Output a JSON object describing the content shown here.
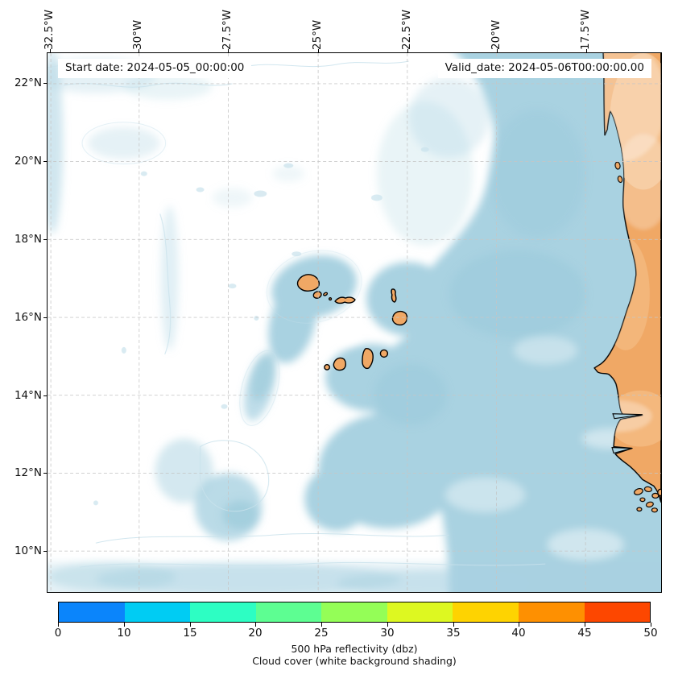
{
  "figure": {
    "annotations": {
      "start_date": "Start date: 2024-05-05_00:00:00",
      "valid_date": "Valid_date: 2024-05-06T00:00:00.00"
    },
    "x_axis": {
      "labels": [
        "32.5°W",
        "30°W",
        "27.5°W",
        "25°W",
        "22.5°W",
        "20°W",
        "17.5°W"
      ]
    },
    "y_axis": {
      "labels": [
        "22°N",
        "20°N",
        "18°N",
        "16°N",
        "14°N",
        "12°N",
        "10°N"
      ]
    }
  },
  "colorbar": {
    "tick_labels": [
      "0",
      "10",
      "15",
      "20",
      "25",
      "30",
      "35",
      "40",
      "45",
      "50"
    ],
    "segment_colors": [
      "#0b85fb",
      "#00ccf3",
      "#2dfec3",
      "#5dfe92",
      "#94fe57",
      "#ddf821",
      "#fed301",
      "#fe9001",
      "#fd4700"
    ],
    "title_line1": "500 hPa reflectivity (dbz)",
    "title_line2": "Cloud cover (white background shading)"
  },
  "colors": {
    "ocean": "#a9d2e1",
    "ocean_deep": "#8fc3d6",
    "land": "#f0a865",
    "land_light": "#f7c795",
    "cloud": "#ffffff",
    "contour": "#c9e2ec",
    "grid": "#c6c6c6"
  },
  "chart_data": {
    "type": "heatmap",
    "description": "Weather-model map of 500 hPa radar reflectivity over cloud-cover shading, eastern tropical Atlantic with the Cape Verde islands and the West African coast (Mauritania, Senegal, Guinea-Bissau).",
    "annotations": [
      "Start date: 2024-05-05_00:00:00",
      "Valid_date: 2024-05-06T00:00:00.00"
    ],
    "x_tick_labels": [
      "32.5°W",
      "30°W",
      "27.5°W",
      "25°W",
      "22.5°W",
      "20°W",
      "17.5°W"
    ],
    "y_tick_labels": [
      "22°N",
      "20°N",
      "18°N",
      "16°N",
      "14°N",
      "12°N",
      "10°N"
    ],
    "lon_range_deg_west": [
      32.6,
      15.4
    ],
    "lat_range_deg_north": [
      9.0,
      22.8
    ],
    "grid": "dashed lat/lon graticule every 2.5 deg lon and 2 deg lat",
    "colorbar": {
      "label": "500 hPa reflectivity (dbz)",
      "sublabel": "Cloud cover (white background shading)",
      "orientation": "horizontal",
      "boundaries": [
        0,
        10,
        15,
        20,
        25,
        30,
        35,
        40,
        45,
        50
      ],
      "colors": [
        "#0b85fb",
        "#00ccf3",
        "#2dfec3",
        "#5dfe92",
        "#94fe57",
        "#ddf821",
        "#fed301",
        "#fe9001",
        "#fd4700"
      ]
    },
    "field_values": "No reflectivity at or above 0 dbz is plotted on the map; the shading shows cloud cover as white over a light-blue clear-sky ocean background, with extensive cloud over the western and southwestern part of the domain and clear sky along the African coast and around the Cape Verde islands."
  }
}
